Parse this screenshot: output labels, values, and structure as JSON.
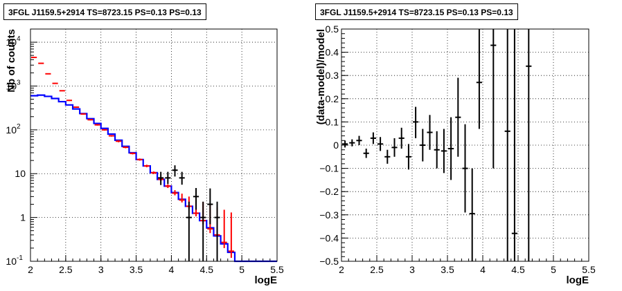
{
  "chart_data": [
    {
      "type": "line",
      "title": "3FGL J1159.5+2914 TS=8723.15 PS=0.13 PS=0.13",
      "xlabel": "logE",
      "ylabel": "Nb of counts",
      "xlim": [
        2,
        5.5
      ],
      "ylim": [
        0.1,
        20000
      ],
      "yscale": "log",
      "grid": true,
      "x_ticks": [
        "2",
        "2.5",
        "3",
        "3.5",
        "4",
        "4.5",
        "5",
        "5.5"
      ],
      "y_ticks": [
        {
          "value": 0.1,
          "label": "10",
          "exp": "-1"
        },
        {
          "value": 1,
          "label": "1",
          "exp": ""
        },
        {
          "value": 10,
          "label": "10",
          "exp": ""
        },
        {
          "value": 100,
          "label": "10",
          "exp": "2"
        },
        {
          "value": 1000,
          "label": "10",
          "exp": "3"
        },
        {
          "value": 10000,
          "label": "10",
          "exp": "4"
        }
      ],
      "bin_edges": [
        2,
        2.1,
        2.2,
        2.3,
        2.4,
        2.5,
        2.6,
        2.7,
        2.8,
        2.9,
        3.0,
        3.1,
        3.2,
        3.3,
        3.4,
        3.5,
        3.6,
        3.7,
        3.8,
        3.9,
        4.0,
        4.1,
        4.2,
        4.3,
        4.4,
        4.5,
        4.6,
        4.7,
        4.8,
        4.9,
        5.0,
        5.1,
        5.2,
        5.3,
        5.4,
        5.5
      ],
      "series": [
        {
          "color": "#0000ff",
          "style": "step",
          "values": [
            600,
            620,
            580,
            520,
            440,
            370,
            300,
            235,
            180,
            140,
            108,
            80,
            58,
            42,
            30,
            21,
            15,
            10.5,
            7.4,
            5.2,
            3.7,
            2.6,
            1.8,
            1.25,
            0.85,
            0.58,
            0.38,
            0.25,
            0.16,
            0.1,
            0.07,
            0.1,
            0.1,
            0.1,
            0.1
          ]
        },
        {
          "color": "#ff0000",
          "style": "error-bars",
          "x": [
            2.05,
            2.15,
            2.25,
            2.35,
            2.45,
            2.55,
            2.65,
            2.75,
            2.85,
            2.95,
            3.05,
            3.15,
            3.25,
            3.35,
            3.45,
            3.55,
            3.65,
            3.75,
            3.85,
            3.95,
            4.05,
            4.15,
            4.25,
            4.35,
            4.45,
            4.55,
            4.65,
            4.75,
            4.85
          ],
          "values": [
            4500,
            3300,
            1900,
            1150,
            780,
            470,
            330,
            230,
            170,
            130,
            100,
            73,
            55,
            40,
            29,
            21,
            15,
            10.5,
            7.4,
            5.2,
            3.6,
            2.5,
            1.8,
            1.25,
            0.85,
            0.55,
            0.4,
            0.27,
            0.17
          ],
          "err_low": [
            4400,
            3220,
            1850,
            1120,
            760,
            455,
            320,
            222,
            164,
            125,
            96,
            70,
            52,
            38,
            27.5,
            19.8,
            14,
            9.8,
            6.8,
            4.7,
            3.2,
            2.2,
            1.55,
            1.06,
            0.7,
            0.44,
            0.31,
            0.2,
            0.12
          ],
          "err_high": [
            4600,
            3380,
            1950,
            1180,
            800,
            485,
            340,
            238,
            176,
            135,
            104,
            76,
            58,
            42,
            30.5,
            22.2,
            16,
            11.2,
            8.0,
            5.7,
            4.2,
            3.5,
            3.0,
            2.6,
            2.25,
            1.95,
            1.7,
            1.5,
            1.3
          ]
        },
        {
          "color": "#000000",
          "style": "error-bars",
          "x": [
            3.85,
            3.95,
            4.05,
            4.15,
            4.25,
            4.35,
            4.45,
            4.55,
            4.65
          ],
          "values": [
            8,
            8,
            12,
            8,
            1,
            3,
            1,
            2,
            1
          ],
          "err_low": [
            5.5,
            5.8,
            8.6,
            5.6,
            0.1,
            1.5,
            0.1,
            0.7,
            0.1
          ],
          "err_high": [
            11,
            11,
            15.5,
            11,
            2.3,
            4.7,
            2.3,
            4.6,
            2.3
          ]
        }
      ]
    },
    {
      "type": "scatter",
      "title": "3FGL J1159.5+2914 TS=8723.15 PS=0.13 PS=0.13",
      "xlabel": "logE",
      "ylabel": "(data-model)/model",
      "xlim": [
        2,
        5.5
      ],
      "ylim": [
        -0.5,
        0.5
      ],
      "grid": true,
      "x_ticks": [
        "2",
        "2.5",
        "3",
        "3.5",
        "4",
        "4.5",
        "5",
        "5.5"
      ],
      "y_ticks": [
        "−0.5",
        "−0.4",
        "−0.3",
        "−0.2",
        "−0.1",
        "0",
        "0.1",
        "0.2",
        "0.3",
        "0.4",
        "0.5"
      ],
      "series": [
        {
          "color": "#000000",
          "style": "error-bars",
          "x": [
            2.05,
            2.15,
            2.25,
            2.35,
            2.45,
            2.55,
            2.65,
            2.75,
            2.85,
            2.95,
            3.05,
            3.15,
            3.25,
            3.35,
            3.45,
            3.55,
            3.65,
            3.75,
            3.85,
            3.95,
            4.15,
            4.35,
            4.45,
            4.65
          ],
          "values": [
            0.005,
            0.01,
            0.02,
            -0.035,
            0.03,
            0.005,
            -0.05,
            -0.01,
            0.03,
            -0.05,
            0.1,
            0.0,
            0.055,
            -0.02,
            -0.025,
            -0.015,
            0.12,
            -0.1,
            -0.295,
            0.27,
            0.43,
            0.06,
            -0.38,
            0.34
          ],
          "err_low": [
            -0.01,
            -0.005,
            0.0,
            -0.055,
            0.005,
            -0.025,
            -0.08,
            -0.05,
            -0.015,
            -0.105,
            0.03,
            -0.07,
            -0.02,
            -0.1,
            -0.12,
            -0.15,
            -0.05,
            -0.29,
            -0.5,
            0.07,
            -0.1,
            -0.5,
            -0.5,
            -0.5
          ],
          "err_high": [
            0.02,
            0.025,
            0.04,
            -0.015,
            0.055,
            0.035,
            -0.02,
            0.03,
            0.075,
            0.005,
            0.165,
            0.07,
            0.13,
            0.06,
            0.07,
            0.12,
            0.29,
            0.09,
            -0.1,
            0.5,
            0.5,
            0.5,
            0.5,
            0.5
          ]
        }
      ]
    }
  ]
}
